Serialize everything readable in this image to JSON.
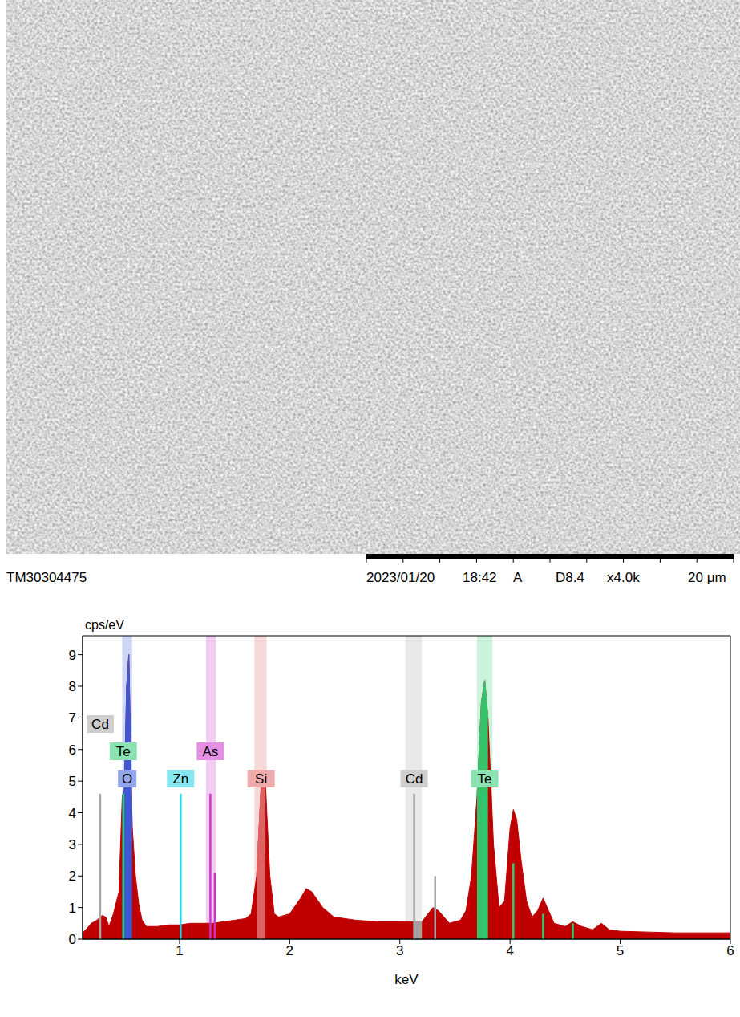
{
  "micrograph": {
    "instrument": "TM30304475",
    "date": "2023/01/20",
    "time": "18:42",
    "mode": "A",
    "working_distance": "D8.4",
    "magnification": "x4.0k",
    "scale_bar": "20 μm"
  },
  "chart_data": {
    "type": "area",
    "y_label": "cps/eV",
    "x_label": "keV",
    "color": "#c00000",
    "xlim": [
      0.12,
      6
    ],
    "xticks": [
      1,
      2,
      3,
      4,
      5,
      6
    ],
    "ylim": [
      0,
      9.6
    ],
    "yticks": [
      0,
      1,
      2,
      3,
      4,
      5,
      6,
      7,
      8,
      9
    ],
    "x": [
      0.12,
      0.15,
      0.2,
      0.25,
      0.3,
      0.33,
      0.36,
      0.4,
      0.45,
      0.48,
      0.5,
      0.52,
      0.54,
      0.57,
      0.6,
      0.63,
      0.66,
      0.7,
      0.8,
      0.9,
      1.0,
      1.1,
      1.2,
      1.3,
      1.4,
      1.5,
      1.6,
      1.65,
      1.7,
      1.74,
      1.78,
      1.82,
      1.86,
      1.9,
      2.0,
      2.1,
      2.15,
      2.2,
      2.3,
      2.4,
      2.6,
      2.8,
      3.0,
      3.13,
      3.2,
      3.3,
      3.35,
      3.45,
      3.55,
      3.6,
      3.65,
      3.7,
      3.74,
      3.77,
      3.8,
      3.85,
      3.9,
      3.95,
      4.0,
      4.03,
      4.06,
      4.1,
      4.15,
      4.2,
      4.25,
      4.3,
      4.35,
      4.4,
      4.5,
      4.57,
      4.65,
      4.75,
      4.83,
      4.9,
      5.0,
      5.5,
      6.0
    ],
    "values": [
      0.2,
      0.3,
      0.5,
      0.6,
      0.75,
      0.7,
      0.4,
      0.8,
      1.5,
      4.5,
      4.8,
      8.0,
      9.0,
      3.6,
      2.0,
      1.1,
      0.6,
      0.4,
      0.4,
      0.45,
      0.45,
      0.5,
      0.5,
      0.5,
      0.55,
      0.6,
      0.65,
      0.8,
      2.0,
      4.8,
      4.9,
      2.0,
      0.8,
      0.7,
      0.8,
      1.3,
      1.6,
      1.5,
      1.0,
      0.7,
      0.6,
      0.55,
      0.55,
      0.55,
      0.55,
      1.0,
      0.9,
      0.5,
      0.6,
      0.9,
      2.0,
      4.5,
      7.5,
      8.2,
      7.0,
      3.0,
      1.0,
      1.2,
      3.5,
      4.1,
      3.8,
      2.5,
      1.2,
      0.7,
      0.9,
      1.3,
      0.9,
      0.5,
      0.4,
      0.55,
      0.4,
      0.3,
      0.5,
      0.3,
      0.25,
      0.2,
      0.2
    ],
    "elements": [
      {
        "name": "Cd",
        "color": "#a6a6a6",
        "band": [
          3.05,
          3.2
        ],
        "energies": [
          0.28,
          3.13,
          3.32
        ],
        "heights": [
          4.6,
          4.6,
          2.0
        ]
      },
      {
        "name": "Te",
        "color": "#2ecc71",
        "band": [
          3.7,
          3.84
        ],
        "energies": [
          0.49,
          3.77,
          4.03,
          4.3,
          4.57
        ],
        "heights": [
          4.6,
          4.6,
          2.4,
          0.8,
          0.5
        ]
      },
      {
        "name": "O",
        "color": "#3b5bdb",
        "band": [
          0.48,
          0.57
        ],
        "energies": [
          0.525
        ],
        "heights": [
          4.6
        ]
      },
      {
        "name": "Zn",
        "color": "#22d3e6",
        "energies": [
          1.01
        ],
        "heights": [
          4.6
        ]
      },
      {
        "name": "As",
        "color": "#cc33cc",
        "band": [
          1.24,
          1.33
        ],
        "energies": [
          1.28,
          1.32
        ],
        "heights": [
          4.6,
          2.1
        ]
      },
      {
        "name": "Si",
        "color": "#e06666",
        "band": [
          1.68,
          1.79
        ],
        "energies": [
          1.74
        ],
        "heights": [
          4.6
        ]
      }
    ],
    "annotations": [
      {
        "text": "Cd",
        "x": 0.28
      },
      {
        "text": "Te",
        "x": 0.49
      },
      {
        "text": "O",
        "x": 0.525
      },
      {
        "text": "Zn",
        "x": 1.01
      },
      {
        "text": "As",
        "x": 1.28
      },
      {
        "text": "Si",
        "x": 1.74
      },
      {
        "text": "Cd",
        "x": 3.13
      },
      {
        "text": "Te",
        "x": 3.77
      }
    ]
  }
}
